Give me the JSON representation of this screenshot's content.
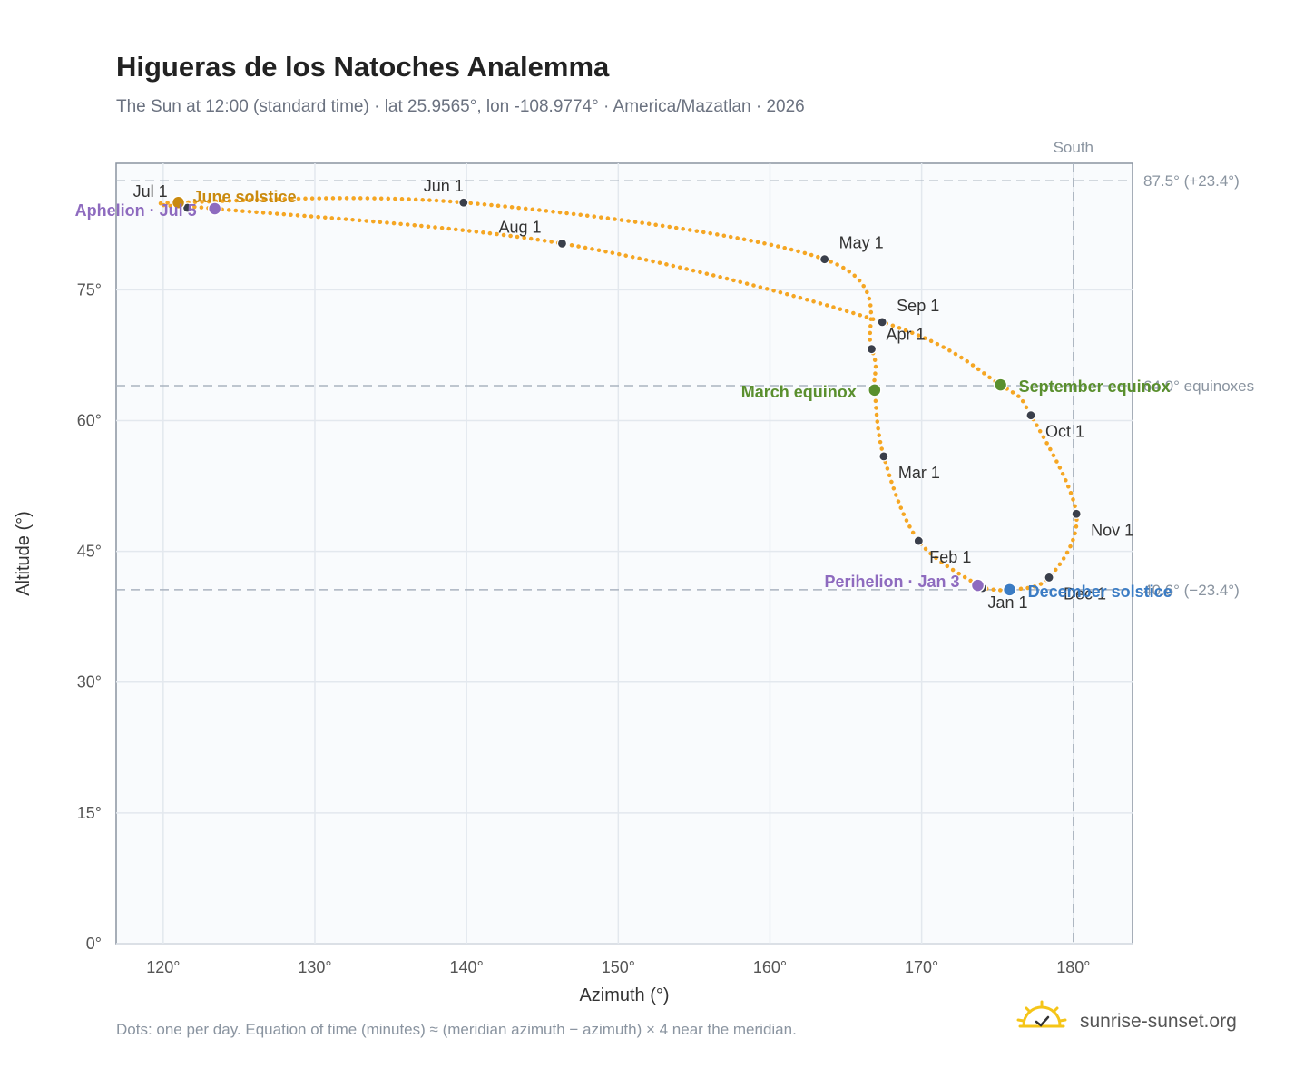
{
  "header": {
    "title": "Higueras de los Natoches Analemma",
    "subtitle": "The Sun at 12:00 (standard time) · lat 25.9565°, lon -108.9774° · America/Mazatlan · 2026"
  },
  "footer": {
    "note": "Dots: one per day. Equation of time (minutes) ≈ (meridian azimuth − azimuth) × 4 near the meridian.",
    "brand": "sunrise-sunset.org"
  },
  "colors": {
    "path": "#f5a623",
    "month_dot": "#3a3f4b",
    "equinox": "#5a8f2e",
    "june_solstice": "#c98a0f",
    "december_solstice": "#3b7cc4",
    "apsis": "#8e6bbf",
    "reference_line": "#aab4c0",
    "grid": "#e3e8ee",
    "plot_bg": "#f9fbfd"
  },
  "chart_data": {
    "type": "scatter",
    "title": "Higueras de los Natoches Analemma",
    "xlabel": "Azimuth (°)",
    "ylabel": "Altitude (°)",
    "xlim": [
      116.9,
      183.9
    ],
    "ylim": [
      0,
      89.5
    ],
    "x_ticks": [
      {
        "value": 120,
        "label": "120°"
      },
      {
        "value": 130,
        "label": "130°"
      },
      {
        "value": 140,
        "label": "140°"
      },
      {
        "value": 150,
        "label": "150°"
      },
      {
        "value": 160,
        "label": "160°"
      },
      {
        "value": 170,
        "label": "170°"
      },
      {
        "value": 180,
        "label": "180°"
      }
    ],
    "y_ticks": [
      {
        "value": 0,
        "label": "0°"
      },
      {
        "value": 15,
        "label": "15°"
      },
      {
        "value": 30,
        "label": "30°"
      },
      {
        "value": 45,
        "label": "45°"
      },
      {
        "value": 60,
        "label": "60°"
      },
      {
        "value": 75,
        "label": "75°"
      }
    ],
    "grid": true,
    "reference_lines": [
      {
        "axis": "y",
        "value": 87.5,
        "label": "87.5° (+23.4°)"
      },
      {
        "axis": "y",
        "value": 64.0,
        "label": "64.0° equinoxes"
      },
      {
        "axis": "y",
        "value": 40.6,
        "label": "40.6° (−23.4°)"
      },
      {
        "axis": "x",
        "value": 180,
        "label": "South"
      }
    ],
    "month_points": [
      {
        "label": "Jan 1",
        "az": 174.0,
        "alt": 40.8
      },
      {
        "label": "Feb 1",
        "az": 169.8,
        "alt": 46.2
      },
      {
        "label": "Mar 1",
        "az": 167.5,
        "alt": 55.9
      },
      {
        "label": "Apr 1",
        "az": 166.7,
        "alt": 68.2
      },
      {
        "label": "May 1",
        "az": 163.6,
        "alt": 78.5
      },
      {
        "label": "Jun 1",
        "az": 139.8,
        "alt": 85.0
      },
      {
        "label": "Jul 1",
        "az": 121.6,
        "alt": 84.4
      },
      {
        "label": "Aug 1",
        "az": 146.3,
        "alt": 80.3
      },
      {
        "label": "Sep 1",
        "az": 167.4,
        "alt": 71.3
      },
      {
        "label": "Oct 1",
        "az": 177.2,
        "alt": 60.6
      },
      {
        "label": "Nov 1",
        "az": 180.2,
        "alt": 49.3
      },
      {
        "label": "Dec 1",
        "az": 178.4,
        "alt": 42.0
      }
    ],
    "events": [
      {
        "label": "March equinox",
        "az": 166.9,
        "alt": 63.5,
        "kind": "equinox"
      },
      {
        "label": "September equinox",
        "az": 175.2,
        "alt": 64.1,
        "kind": "equinox"
      },
      {
        "label": "June solstice",
        "az": 121.0,
        "alt": 85.0,
        "kind": "june_solstice"
      },
      {
        "label": "December solstice",
        "az": 175.8,
        "alt": 40.6,
        "kind": "december_solstice"
      },
      {
        "label": "Aphelion · Jul 5",
        "az": 123.4,
        "alt": 84.3,
        "kind": "apsis"
      },
      {
        "label": "Perihelion · Jan 3",
        "az": 173.7,
        "alt": 41.1,
        "kind": "apsis"
      }
    ],
    "path": [
      [
        174.0,
        40.8
      ],
      [
        169.8,
        46.2
      ],
      [
        167.5,
        55.9
      ],
      [
        166.9,
        63.5
      ],
      [
        166.7,
        68.2
      ],
      [
        163.6,
        78.5
      ],
      [
        139.8,
        85.0
      ],
      [
        121.0,
        85.0
      ],
      [
        121.6,
        84.4
      ],
      [
        123.4,
        84.3
      ],
      [
        146.3,
        80.3
      ],
      [
        167.4,
        71.3
      ],
      [
        175.2,
        64.1
      ],
      [
        177.2,
        60.6
      ],
      [
        180.2,
        49.3
      ],
      [
        178.4,
        42.0
      ],
      [
        175.8,
        40.6
      ],
      [
        174.0,
        40.8
      ]
    ]
  }
}
